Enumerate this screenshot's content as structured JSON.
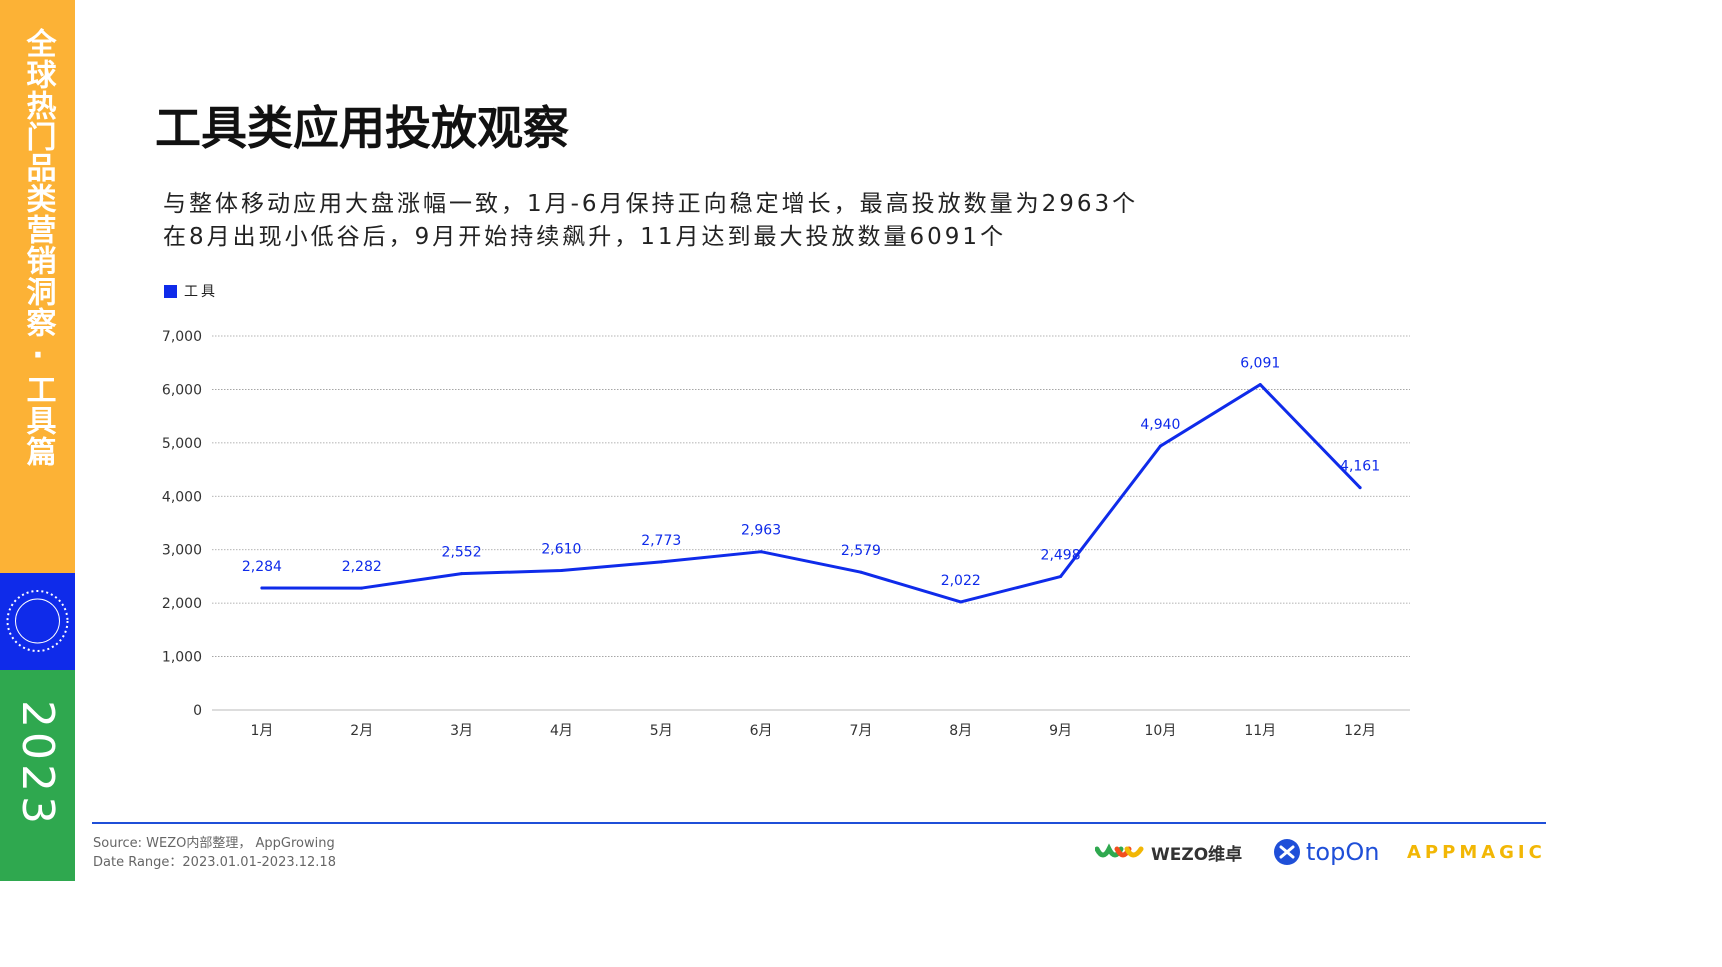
{
  "sidebar": {
    "title": "全球热门品类营销洞察·工具篇",
    "badge_text": "MARKETING GLOBAL MOBILE APP ADVERTISING",
    "year": "2023"
  },
  "header": {
    "title": "工具类应用投放观察",
    "subtitle_line1": "与整体移动应用大盘涨幅一致，1月-6月保持正向稳定增长，最高投放数量为2963个",
    "subtitle_line2": "在8月出现小低谷后，9月开始持续飙升，11月达到最大投放数量6091个"
  },
  "footer": {
    "source": "Source:  WEZO内部整理， AppGrowing",
    "date_range": "Date Range：2023.01.01-2023.12.18",
    "logo_wezo": "WEZO维卓",
    "logo_topon": "topOn",
    "logo_appmagic": "APPMAGIC"
  },
  "colors": {
    "line": "#0F2BEA",
    "label": "#0F2BEA",
    "band_orange": "#FCB236",
    "band_blue": "#0F2BEA",
    "band_green": "#2FA84F"
  },
  "chart_data": {
    "type": "line",
    "categories": [
      "1月",
      "2月",
      "3月",
      "4月",
      "5月",
      "6月",
      "7月",
      "8月",
      "9月",
      "10月",
      "11月",
      "12月"
    ],
    "series": [
      {
        "name": "工具",
        "values": [
          2284,
          2282,
          2552,
          2610,
          2773,
          2963,
          2579,
          2022,
          2498,
          4940,
          6091,
          4161
        ]
      }
    ],
    "data_labels": [
      "2,284",
      "2,282",
      "2,552",
      "2,610",
      "2,773",
      "2,963",
      "2,579",
      "2,022",
      "2,498",
      "4,940",
      "6,091",
      "4,161"
    ],
    "yticks": [
      0,
      1000,
      2000,
      3000,
      4000,
      5000,
      6000,
      7000
    ],
    "ytick_labels": [
      "0",
      "1,000",
      "2,000",
      "3,000",
      "4,000",
      "5,000",
      "6,000",
      "7,000"
    ],
    "ylim": [
      0,
      7000
    ],
    "grid": true,
    "legend_position": "top-left"
  }
}
